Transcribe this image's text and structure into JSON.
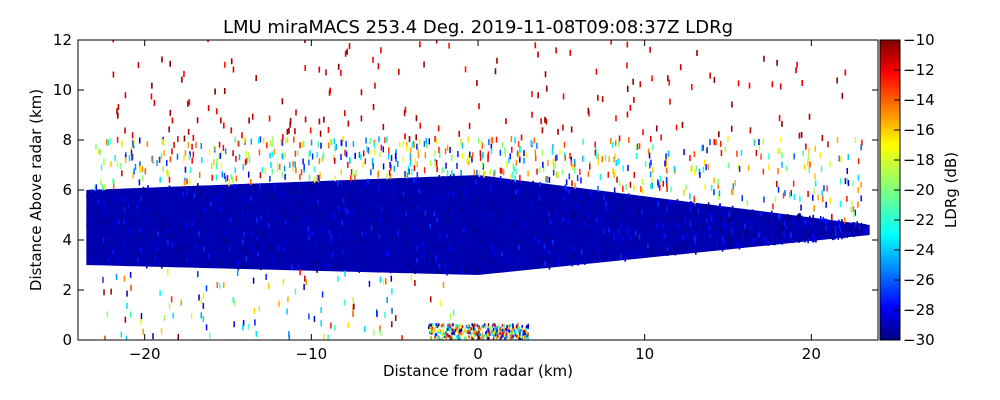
{
  "chart_data": {
    "type": "heatmap",
    "title": "LMU miraMACS 253.4 Deg. 2019-11-08T09:08:37Z  LDRg",
    "xlabel": "Distance from radar (km)",
    "ylabel": "Distance Above radar  (km)",
    "xlim": [
      -24,
      24
    ],
    "ylim": [
      0,
      12
    ],
    "x_ticks": [
      -20,
      -10,
      0,
      10,
      20
    ],
    "x_tick_labels": [
      "−20",
      "−10",
      "0",
      "10",
      "20"
    ],
    "y_ticks": [
      0,
      2,
      4,
      6,
      8,
      10,
      12
    ],
    "y_tick_labels": [
      "0",
      "2",
      "4",
      "6",
      "8",
      "10",
      "12"
    ],
    "colorbar": {
      "label": "LDRg (dB)",
      "range": [
        -30,
        -10
      ],
      "ticks": [
        -30,
        -28,
        -26,
        -24,
        -22,
        -20,
        -18,
        -16,
        -14,
        -12,
        -10
      ],
      "tick_labels": [
        "−30",
        "−28",
        "−26",
        "−24",
        "−22",
        "−20",
        "−18",
        "−16",
        "−14",
        "−12",
        "−10"
      ],
      "colormap": "jet"
    },
    "layers": [
      {
        "name": "dense-cloud-layer",
        "ldr_db": -29,
        "x_range": [
          -23.5,
          23.5
        ],
        "top_km_at_left": 6.0,
        "top_km_at_center": 6.6,
        "top_km_at_right": 4.6,
        "base_km_at_left": 3.0,
        "base_km_at_center": 2.6,
        "base_km_at_right": 4.2
      },
      {
        "name": "melting-sparse-layer",
        "ldr_db": -20,
        "x_range": [
          -23,
          23
        ],
        "height_km": [
          6.5,
          8.0
        ]
      },
      {
        "name": "scattered-upper-echoes",
        "ldr_db": -10,
        "x_range": [
          -22,
          22
        ],
        "height_km": [
          8.0,
          12.0
        ]
      },
      {
        "name": "near-ground-clutter",
        "ldr_db": -18,
        "x_range": [
          -3,
          3
        ],
        "height_km": [
          0.0,
          0.6
        ]
      }
    ]
  }
}
